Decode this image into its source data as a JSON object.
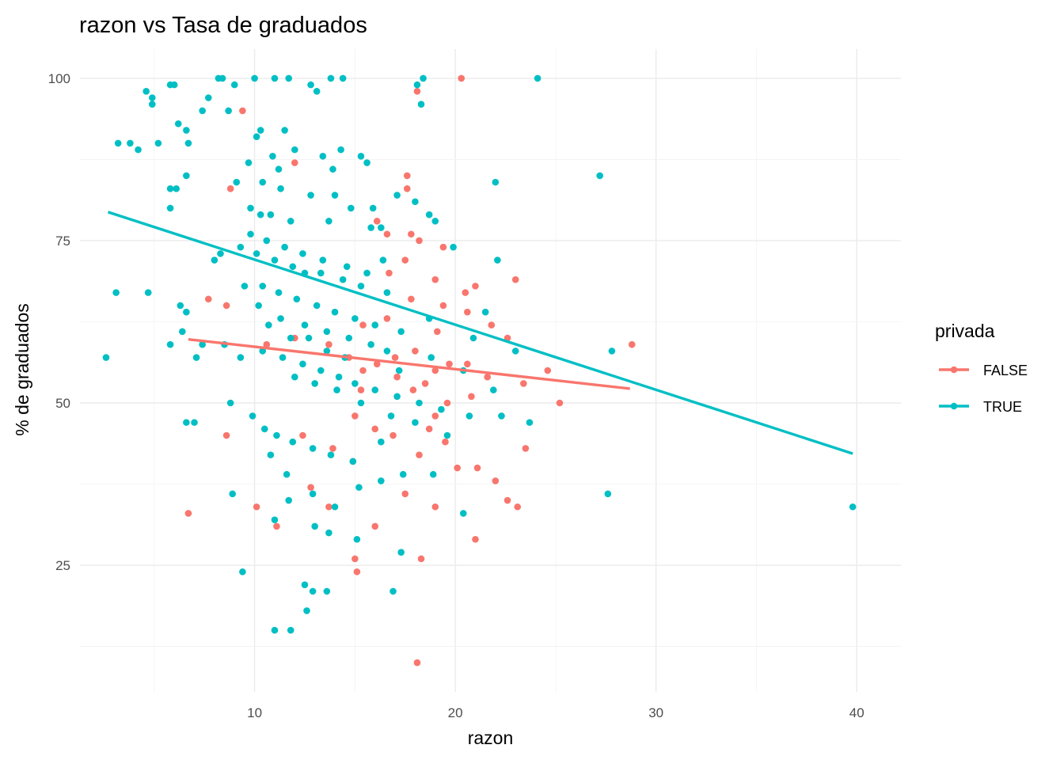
{
  "chart_data": {
    "type": "scatter",
    "title": "razon vs Tasa de graduados",
    "xlabel": "razon",
    "ylabel": "% de graduados",
    "xlim": [
      1.3,
      42.2
    ],
    "ylim": [
      5.5,
      104.5
    ],
    "x_ticks": [
      10,
      20,
      30,
      40
    ],
    "x_tick_labels": [
      "10",
      "20",
      "30",
      "40"
    ],
    "y_ticks": [
      25,
      50,
      75,
      100
    ],
    "y_tick_labels": [
      "25",
      "50",
      "75",
      "100"
    ],
    "grid": true,
    "legend": {
      "title": "privada",
      "placement": "right"
    },
    "series": [
      {
        "name": "FALSE",
        "color": "#F8766D",
        "trend": {
          "x": [
            6.7,
            28.7
          ],
          "y": [
            59.8,
            52.2
          ]
        },
        "points": [
          [
            20.3,
            100
          ],
          [
            18.1,
            98
          ],
          [
            9.4,
            95
          ],
          [
            12.0,
            87
          ],
          [
            8.8,
            83
          ],
          [
            17.6,
            85
          ],
          [
            17.6,
            83
          ],
          [
            16.1,
            78
          ],
          [
            16.6,
            76
          ],
          [
            17.8,
            76
          ],
          [
            18.2,
            75
          ],
          [
            19.4,
            74
          ],
          [
            17.5,
            72
          ],
          [
            16.7,
            70
          ],
          [
            19.0,
            69
          ],
          [
            21.0,
            68
          ],
          [
            23.0,
            69
          ],
          [
            20.5,
            67
          ],
          [
            17.8,
            66
          ],
          [
            19.4,
            65
          ],
          [
            20.6,
            64
          ],
          [
            21.8,
            62
          ],
          [
            22.6,
            60
          ],
          [
            19.1,
            61
          ],
          [
            16.6,
            63
          ],
          [
            15.4,
            62
          ],
          [
            13.7,
            59
          ],
          [
            12.0,
            60
          ],
          [
            10.6,
            59
          ],
          [
            7.7,
            66
          ],
          [
            8.6,
            65
          ],
          [
            14.7,
            57
          ],
          [
            15.4,
            55
          ],
          [
            16.1,
            56
          ],
          [
            17.1,
            54
          ],
          [
            17.9,
            52
          ],
          [
            18.5,
            53
          ],
          [
            19.0,
            55
          ],
          [
            19.7,
            56
          ],
          [
            20.6,
            56
          ],
          [
            21.6,
            54
          ],
          [
            23.4,
            53
          ],
          [
            24.6,
            55
          ],
          [
            28.8,
            59
          ],
          [
            25.2,
            50
          ],
          [
            19.6,
            50
          ],
          [
            18.7,
            46
          ],
          [
            19.5,
            44
          ],
          [
            18.2,
            42
          ],
          [
            20.1,
            40
          ],
          [
            21.1,
            40
          ],
          [
            22.0,
            38
          ],
          [
            22.6,
            35
          ],
          [
            23.1,
            34
          ],
          [
            19.0,
            34
          ],
          [
            17.5,
            36
          ],
          [
            15.0,
            26
          ],
          [
            15.1,
            24
          ],
          [
            18.3,
            26
          ],
          [
            18.1,
            10
          ],
          [
            15.0,
            48
          ],
          [
            16.0,
            46
          ],
          [
            16.9,
            45
          ],
          [
            13.9,
            43
          ],
          [
            12.4,
            45
          ],
          [
            8.6,
            45
          ],
          [
            6.7,
            33
          ],
          [
            10.1,
            34
          ],
          [
            11.1,
            31
          ],
          [
            13.7,
            34
          ],
          [
            16.0,
            31
          ],
          [
            21.0,
            29
          ],
          [
            15.3,
            52
          ],
          [
            17.0,
            57
          ],
          [
            18.0,
            58
          ],
          [
            19.0,
            48
          ],
          [
            12.8,
            37
          ],
          [
            14.9,
            41
          ],
          [
            20.8,
            51
          ],
          [
            23.5,
            43
          ]
        ]
      },
      {
        "name": "TRUE",
        "color": "#00BFC4",
        "trend": {
          "x": [
            2.7,
            39.8
          ],
          "y": [
            79.4,
            42.2
          ]
        },
        "points": [
          [
            8.2,
            100
          ],
          [
            8.4,
            100
          ],
          [
            10.0,
            100
          ],
          [
            11.0,
            100
          ],
          [
            11.7,
            100
          ],
          [
            13.8,
            100
          ],
          [
            14.4,
            100
          ],
          [
            24.1,
            100
          ],
          [
            18.4,
            100
          ],
          [
            18.1,
            99
          ],
          [
            5.8,
            99
          ],
          [
            6.0,
            99
          ],
          [
            9.0,
            99
          ],
          [
            12.8,
            99
          ],
          [
            4.6,
            98
          ],
          [
            13.1,
            98
          ],
          [
            4.9,
            97
          ],
          [
            7.7,
            97
          ],
          [
            4.9,
            96
          ],
          [
            18.3,
            96
          ],
          [
            7.4,
            95
          ],
          [
            8.7,
            95
          ],
          [
            6.2,
            93
          ],
          [
            6.6,
            92
          ],
          [
            10.3,
            92
          ],
          [
            10.1,
            91
          ],
          [
            11.5,
            92
          ],
          [
            3.2,
            90
          ],
          [
            3.8,
            90
          ],
          [
            5.2,
            90
          ],
          [
            6.7,
            90
          ],
          [
            4.2,
            89
          ],
          [
            9.7,
            87
          ],
          [
            11.2,
            86
          ],
          [
            13.4,
            88
          ],
          [
            14.3,
            89
          ],
          [
            15.3,
            88
          ],
          [
            15.6,
            87
          ],
          [
            27.2,
            85
          ],
          [
            6.6,
            85
          ],
          [
            22.0,
            84
          ],
          [
            9.1,
            84
          ],
          [
            10.4,
            84
          ],
          [
            11.3,
            83
          ],
          [
            12.8,
            82
          ],
          [
            14.0,
            82
          ],
          [
            5.8,
            83
          ],
          [
            6.1,
            83
          ],
          [
            17.1,
            82
          ],
          [
            18.0,
            81
          ],
          [
            5.8,
            80
          ],
          [
            9.8,
            80
          ],
          [
            10.3,
            79
          ],
          [
            10.8,
            79
          ],
          [
            11.8,
            78
          ],
          [
            13.7,
            78
          ],
          [
            15.8,
            77
          ],
          [
            16.3,
            77
          ],
          [
            18.7,
            79
          ],
          [
            19.0,
            78
          ],
          [
            8.3,
            73
          ],
          [
            9.3,
            74
          ],
          [
            10.1,
            73
          ],
          [
            11.0,
            72
          ],
          [
            11.9,
            71
          ],
          [
            12.5,
            70
          ],
          [
            13.3,
            70
          ],
          [
            14.4,
            69
          ],
          [
            15.3,
            68
          ],
          [
            16.6,
            67
          ],
          [
            19.9,
            74
          ],
          [
            22.1,
            72
          ],
          [
            9.5,
            68
          ],
          [
            10.4,
            68
          ],
          [
            11.2,
            67
          ],
          [
            12.1,
            66
          ],
          [
            13.1,
            65
          ],
          [
            14.0,
            64
          ],
          [
            15.0,
            63
          ],
          [
            16.0,
            62
          ],
          [
            17.3,
            61
          ],
          [
            18.7,
            63
          ],
          [
            21.5,
            64
          ],
          [
            23.0,
            58
          ],
          [
            27.8,
            58
          ],
          [
            6.4,
            61
          ],
          [
            7.4,
            59
          ],
          [
            8.5,
            59
          ],
          [
            9.3,
            57
          ],
          [
            10.4,
            58
          ],
          [
            11.4,
            57
          ],
          [
            12.4,
            56
          ],
          [
            13.3,
            55
          ],
          [
            14.2,
            54
          ],
          [
            15.0,
            53
          ],
          [
            16.0,
            52
          ],
          [
            17.1,
            51
          ],
          [
            18.2,
            50
          ],
          [
            19.3,
            49
          ],
          [
            20.7,
            48
          ],
          [
            21.9,
            52
          ],
          [
            22.3,
            48
          ],
          [
            23.7,
            47
          ],
          [
            2.6,
            57
          ],
          [
            3.1,
            67
          ],
          [
            4.7,
            67
          ],
          [
            6.3,
            65
          ],
          [
            6.6,
            64
          ],
          [
            5.8,
            59
          ],
          [
            7.1,
            57
          ],
          [
            8.8,
            50
          ],
          [
            9.9,
            48
          ],
          [
            10.5,
            46
          ],
          [
            11.1,
            45
          ],
          [
            11.9,
            44
          ],
          [
            12.9,
            43
          ],
          [
            13.8,
            42
          ],
          [
            14.9,
            41
          ],
          [
            16.3,
            44
          ],
          [
            17.4,
            39
          ],
          [
            18.9,
            39
          ],
          [
            6.6,
            47
          ],
          [
            7.0,
            47
          ],
          [
            8.9,
            36
          ],
          [
            9.4,
            24
          ],
          [
            10.8,
            42
          ],
          [
            11.6,
            39
          ],
          [
            12.9,
            36
          ],
          [
            14.0,
            34
          ],
          [
            15.2,
            37
          ],
          [
            16.3,
            38
          ],
          [
            11.0,
            32
          ],
          [
            11.7,
            35
          ],
          [
            13.0,
            31
          ],
          [
            13.7,
            30
          ],
          [
            15.1,
            29
          ],
          [
            17.3,
            27
          ],
          [
            16.9,
            21
          ],
          [
            12.5,
            22
          ],
          [
            12.9,
            21
          ],
          [
            13.6,
            21
          ],
          [
            12.6,
            18
          ],
          [
            11.0,
            15
          ],
          [
            11.8,
            15
          ],
          [
            20.4,
            33
          ],
          [
            27.6,
            36
          ],
          [
            39.8,
            34
          ],
          [
            10.7,
            62
          ],
          [
            11.8,
            60
          ],
          [
            12.7,
            60
          ],
          [
            13.6,
            58
          ],
          [
            14.5,
            57
          ],
          [
            15.8,
            59
          ],
          [
            17.2,
            55
          ],
          [
            9.8,
            76
          ],
          [
            10.6,
            75
          ],
          [
            11.5,
            74
          ],
          [
            12.4,
            73
          ],
          [
            13.4,
            72
          ],
          [
            14.6,
            71
          ],
          [
            15.6,
            70
          ],
          [
            16.4,
            72
          ],
          [
            10.9,
            88
          ],
          [
            12.0,
            89
          ],
          [
            13.9,
            86
          ],
          [
            14.8,
            80
          ],
          [
            15.9,
            80
          ],
          [
            8.0,
            72
          ],
          [
            10.2,
            65
          ],
          [
            11.3,
            63
          ],
          [
            12.5,
            62
          ],
          [
            13.6,
            61
          ],
          [
            14.7,
            60
          ],
          [
            16.6,
            58
          ],
          [
            18.8,
            57
          ],
          [
            20.4,
            55
          ],
          [
            20.9,
            60
          ],
          [
            12.0,
            54
          ],
          [
            13.0,
            53
          ],
          [
            14.1,
            52
          ],
          [
            15.3,
            50
          ],
          [
            16.8,
            48
          ],
          [
            18.0,
            47
          ],
          [
            19.6,
            45
          ]
        ]
      }
    ]
  }
}
